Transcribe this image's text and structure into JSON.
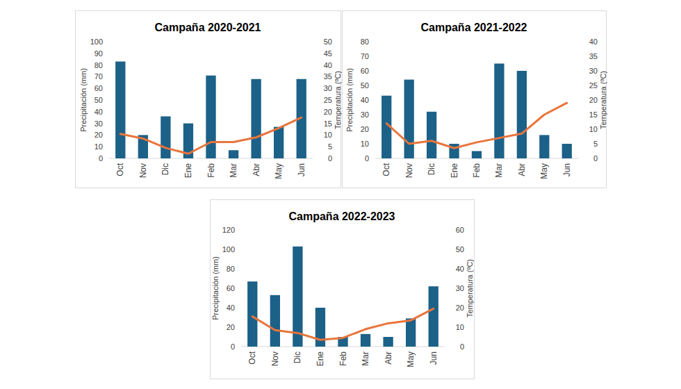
{
  "chart_data": [
    {
      "type": "bar",
      "title": "Campaña 2020-2021",
      "categories": [
        "Oct",
        "Nov",
        "Dic",
        "Ene",
        "Feb",
        "Mar",
        "Abr",
        "May",
        "Jun"
      ],
      "ylabel": "Precipitación (mm)",
      "y2label": "Temperatura (ºC)",
      "ylim": [
        0,
        100
      ],
      "yticks": [
        0,
        10,
        20,
        30,
        40,
        50,
        60,
        70,
        80,
        90,
        100
      ],
      "y2lim": [
        0,
        50
      ],
      "y2ticks": [
        0,
        5,
        10,
        15,
        20,
        25,
        30,
        35,
        40,
        45,
        50
      ],
      "series": [
        {
          "type": "bar",
          "color": "#1c6188",
          "values": [
            83,
            20,
            36,
            30,
            71,
            7,
            68,
            27,
            68
          ]
        },
        {
          "type": "line",
          "color": "#e8743b",
          "axis": "y2",
          "values": [
            10.5,
            8.5,
            4.5,
            2,
            7,
            7,
            9,
            13,
            17.5
          ]
        }
      ]
    },
    {
      "type": "bar",
      "title": "Campaña 2021-2022",
      "categories": [
        "Oct",
        "Nov",
        "Dic",
        "Ene",
        "Feb",
        "Mar",
        "Abr",
        "May",
        "Jun"
      ],
      "ylabel": "Precipitación (mm)",
      "y2label": "Temperatura (ºC)",
      "ylim": [
        0,
        80
      ],
      "yticks": [
        0,
        10,
        20,
        30,
        40,
        50,
        60,
        70,
        80
      ],
      "y2lim": [
        0,
        40
      ],
      "y2ticks": [
        0,
        5,
        10,
        15,
        20,
        25,
        30,
        35,
        40
      ],
      "series": [
        {
          "type": "bar",
          "color": "#1c6188",
          "values": [
            43,
            54,
            32,
            10,
            5,
            65,
            60,
            16,
            10
          ]
        },
        {
          "type": "line",
          "color": "#e8743b",
          "axis": "y2",
          "values": [
            12,
            5,
            6,
            3.5,
            5.5,
            7,
            8.5,
            15,
            19
          ]
        }
      ]
    },
    {
      "type": "bar",
      "title": "Campaña 2022-2023",
      "categories": [
        "Oct",
        "Nov",
        "Dic",
        "Ene",
        "Feb",
        "Mar",
        "Abr",
        "May",
        "Jun"
      ],
      "ylabel": "Precipitación (mm)",
      "y2label": "Temperatura (ºC)",
      "ylim": [
        0,
        120
      ],
      "yticks": [
        0,
        20,
        40,
        60,
        80,
        100,
        120
      ],
      "y2lim": [
        0,
        60
      ],
      "y2ticks": [
        0,
        10,
        20,
        30,
        40,
        50,
        60
      ],
      "series": [
        {
          "type": "bar",
          "color": "#1c6188",
          "values": [
            67,
            53,
            103,
            40,
            10,
            13,
            10,
            29,
            62
          ]
        },
        {
          "type": "line",
          "color": "#e8743b",
          "axis": "y2",
          "values": [
            15.5,
            8.5,
            7,
            3.5,
            4.5,
            9,
            12,
            13.5,
            19.5
          ]
        }
      ]
    }
  ]
}
